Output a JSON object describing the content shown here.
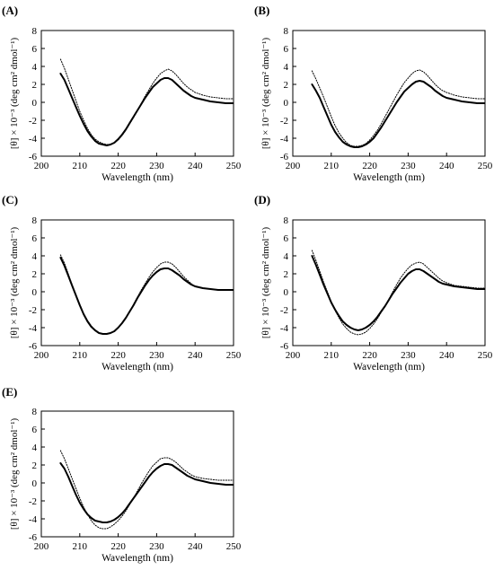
{
  "figure": {
    "panels": [
      {
        "letter": "(A)"
      },
      {
        "letter": "(B)"
      },
      {
        "letter": "(C)"
      },
      {
        "letter": "(D)"
      },
      {
        "letter": "(E)"
      }
    ]
  },
  "chart_data": [
    {
      "type": "line",
      "panel": "(A)",
      "xlabel": "Wavelength (nm)",
      "ylabel": "[θ] × 10⁻³ (deg cm² dmol⁻¹)",
      "xlim": [
        200,
        250
      ],
      "ylim": [
        -6,
        8
      ],
      "xticks": [
        200,
        210,
        220,
        230,
        240,
        250
      ],
      "yticks": [
        -6,
        -4,
        -2,
        0,
        2,
        4,
        6,
        8
      ],
      "grid": false,
      "legend": "none",
      "series": [
        {
          "style": "solid-thick",
          "x": [
            205,
            206,
            207,
            208,
            209,
            210,
            211,
            212,
            213,
            214,
            215,
            216,
            217,
            218,
            219,
            220,
            221,
            222,
            223,
            224,
            225,
            226,
            227,
            228,
            229,
            230,
            231,
            232,
            233,
            234,
            235,
            236,
            237,
            238,
            239,
            240,
            242,
            244,
            246,
            248,
            250
          ],
          "y": [
            3.2,
            2.5,
            1.5,
            0.5,
            -0.5,
            -1.5,
            -2.4,
            -3.2,
            -3.8,
            -4.3,
            -4.6,
            -4.7,
            -4.8,
            -4.7,
            -4.5,
            -4.1,
            -3.6,
            -3.0,
            -2.3,
            -1.6,
            -0.9,
            -0.2,
            0.5,
            1.1,
            1.7,
            2.1,
            2.5,
            2.7,
            2.7,
            2.5,
            2.1,
            1.7,
            1.3,
            1.0,
            0.7,
            0.5,
            0.3,
            0.1,
            0.0,
            -0.1,
            -0.1
          ]
        },
        {
          "style": "dotted",
          "x": [
            205,
            206,
            207,
            208,
            209,
            210,
            211,
            212,
            213,
            214,
            215,
            216,
            217,
            218,
            219,
            220,
            221,
            222,
            223,
            224,
            225,
            226,
            227,
            228,
            229,
            230,
            231,
            232,
            233,
            234,
            235,
            236,
            237,
            238,
            239,
            240,
            242,
            244,
            246,
            248,
            250
          ],
          "y": [
            4.8,
            3.8,
            2.6,
            1.4,
            0.2,
            -1.0,
            -2.0,
            -2.9,
            -3.6,
            -4.1,
            -4.4,
            -4.6,
            -4.7,
            -4.7,
            -4.5,
            -4.2,
            -3.7,
            -3.1,
            -2.4,
            -1.7,
            -0.9,
            -0.1,
            0.7,
            1.4,
            2.1,
            2.7,
            3.2,
            3.5,
            3.7,
            3.5,
            3.1,
            2.6,
            2.1,
            1.7,
            1.4,
            1.1,
            0.8,
            0.6,
            0.5,
            0.4,
            0.4
          ]
        }
      ]
    },
    {
      "type": "line",
      "panel": "(B)",
      "xlabel": "Wavelength (nm)",
      "ylabel": "[θ] × 10⁻³ (deg cm² dmol⁻¹)",
      "xlim": [
        200,
        250
      ],
      "ylim": [
        -6,
        8
      ],
      "xticks": [
        200,
        210,
        220,
        230,
        240,
        250
      ],
      "yticks": [
        -6,
        -4,
        -2,
        0,
        2,
        4,
        6,
        8
      ],
      "grid": false,
      "legend": "none",
      "series": [
        {
          "style": "solid-thick",
          "x": [
            205,
            206,
            207,
            208,
            209,
            210,
            211,
            212,
            213,
            214,
            215,
            216,
            217,
            218,
            219,
            220,
            221,
            222,
            223,
            224,
            225,
            226,
            227,
            228,
            229,
            230,
            231,
            232,
            233,
            234,
            235,
            236,
            237,
            238,
            239,
            240,
            242,
            244,
            246,
            248,
            250
          ],
          "y": [
            2.0,
            1.3,
            0.5,
            -0.5,
            -1.5,
            -2.5,
            -3.3,
            -3.9,
            -4.4,
            -4.7,
            -4.9,
            -5.0,
            -5.0,
            -4.9,
            -4.7,
            -4.4,
            -4.0,
            -3.4,
            -2.8,
            -2.1,
            -1.4,
            -0.7,
            0.0,
            0.6,
            1.2,
            1.6,
            2.0,
            2.3,
            2.4,
            2.3,
            2.0,
            1.7,
            1.3,
            1.0,
            0.7,
            0.5,
            0.3,
            0.1,
            0.0,
            -0.1,
            -0.1
          ]
        },
        {
          "style": "dotted",
          "x": [
            205,
            206,
            207,
            208,
            209,
            210,
            211,
            212,
            213,
            214,
            215,
            216,
            217,
            218,
            219,
            220,
            221,
            222,
            223,
            224,
            225,
            226,
            227,
            228,
            229,
            230,
            231,
            232,
            233,
            234,
            235,
            236,
            237,
            238,
            239,
            240,
            242,
            244,
            246,
            248,
            250
          ],
          "y": [
            3.5,
            2.6,
            1.6,
            0.6,
            -0.5,
            -1.6,
            -2.6,
            -3.4,
            -4.0,
            -4.5,
            -4.8,
            -4.9,
            -4.9,
            -4.8,
            -4.6,
            -4.2,
            -3.7,
            -3.1,
            -2.4,
            -1.6,
            -0.8,
            0.0,
            0.8,
            1.5,
            2.2,
            2.7,
            3.2,
            3.5,
            3.6,
            3.4,
            3.0,
            2.5,
            2.0,
            1.6,
            1.3,
            1.1,
            0.8,
            0.6,
            0.5,
            0.4,
            0.4
          ]
        }
      ]
    },
    {
      "type": "line",
      "panel": "(C)",
      "xlabel": "Wavelength (nm)",
      "ylabel": "[θ] × 10⁻³ (deg cm² dmol⁻¹)",
      "xlim": [
        200,
        250
      ],
      "ylim": [
        -6,
        8
      ],
      "xticks": [
        200,
        210,
        220,
        230,
        240,
        250
      ],
      "yticks": [
        -6,
        -4,
        -2,
        0,
        2,
        4,
        6,
        8
      ],
      "grid": false,
      "legend": "none",
      "series": [
        {
          "style": "solid-thick",
          "x": [
            205,
            206,
            207,
            208,
            209,
            210,
            211,
            212,
            213,
            214,
            215,
            216,
            217,
            218,
            219,
            220,
            221,
            222,
            223,
            224,
            225,
            226,
            227,
            228,
            229,
            230,
            231,
            232,
            233,
            234,
            235,
            236,
            237,
            238,
            239,
            240,
            242,
            244,
            246,
            248,
            250
          ],
          "y": [
            3.8,
            2.9,
            1.8,
            0.7,
            -0.4,
            -1.5,
            -2.5,
            -3.3,
            -3.9,
            -4.3,
            -4.6,
            -4.7,
            -4.7,
            -4.6,
            -4.4,
            -4.0,
            -3.5,
            -2.9,
            -2.2,
            -1.5,
            -0.7,
            0.0,
            0.7,
            1.3,
            1.8,
            2.2,
            2.5,
            2.6,
            2.6,
            2.4,
            2.1,
            1.8,
            1.4,
            1.1,
            0.8,
            0.6,
            0.4,
            0.3,
            0.2,
            0.2,
            0.2
          ]
        },
        {
          "style": "dotted",
          "x": [
            205,
            206,
            207,
            208,
            209,
            210,
            211,
            212,
            213,
            214,
            215,
            216,
            217,
            218,
            219,
            220,
            221,
            222,
            223,
            224,
            225,
            226,
            227,
            228,
            229,
            230,
            231,
            232,
            233,
            234,
            235,
            236,
            237,
            238,
            239,
            240,
            242,
            244,
            246,
            248,
            250
          ],
          "y": [
            4.1,
            3.2,
            2.0,
            0.8,
            -0.3,
            -1.4,
            -2.4,
            -3.2,
            -3.8,
            -4.3,
            -4.6,
            -4.7,
            -4.7,
            -4.6,
            -4.4,
            -4.0,
            -3.5,
            -2.9,
            -2.2,
            -1.4,
            -0.6,
            0.2,
            0.9,
            1.6,
            2.2,
            2.7,
            3.1,
            3.3,
            3.3,
            3.1,
            2.7,
            2.2,
            1.7,
            1.3,
            0.9,
            0.6,
            0.4,
            0.3,
            0.2,
            0.2,
            0.2
          ]
        }
      ]
    },
    {
      "type": "line",
      "panel": "(D)",
      "xlabel": "Wavelength (nm)",
      "ylabel": "[θ] × 10⁻³ (deg cm² dmol⁻¹)",
      "xlim": [
        200,
        250
      ],
      "ylim": [
        -6,
        8
      ],
      "xticks": [
        200,
        210,
        220,
        230,
        240,
        250
      ],
      "yticks": [
        -6,
        -4,
        -2,
        0,
        2,
        4,
        6,
        8
      ],
      "grid": false,
      "legend": "none",
      "series": [
        {
          "style": "solid-thick",
          "x": [
            205,
            206,
            207,
            208,
            209,
            210,
            211,
            212,
            213,
            214,
            215,
            216,
            217,
            218,
            219,
            220,
            221,
            222,
            223,
            224,
            225,
            226,
            227,
            228,
            229,
            230,
            231,
            232,
            233,
            234,
            235,
            236,
            237,
            238,
            239,
            240,
            242,
            244,
            246,
            248,
            250
          ],
          "y": [
            4.0,
            3.0,
            1.9,
            0.8,
            -0.2,
            -1.2,
            -2.0,
            -2.7,
            -3.3,
            -3.7,
            -4.0,
            -4.2,
            -4.3,
            -4.2,
            -4.0,
            -3.7,
            -3.3,
            -2.8,
            -2.2,
            -1.6,
            -0.9,
            -0.2,
            0.4,
            1.0,
            1.5,
            2.0,
            2.3,
            2.5,
            2.5,
            2.3,
            2.0,
            1.7,
            1.4,
            1.1,
            0.9,
            0.8,
            0.6,
            0.5,
            0.4,
            0.3,
            0.3
          ]
        },
        {
          "style": "dotted",
          "x": [
            205,
            206,
            207,
            208,
            209,
            210,
            211,
            212,
            213,
            214,
            215,
            216,
            217,
            218,
            219,
            220,
            221,
            222,
            223,
            224,
            225,
            226,
            227,
            228,
            229,
            230,
            231,
            232,
            233,
            234,
            235,
            236,
            237,
            238,
            239,
            240,
            242,
            244,
            246,
            248,
            250
          ],
          "y": [
            4.6,
            3.5,
            2.3,
            1.1,
            0.0,
            -1.1,
            -2.1,
            -2.9,
            -3.6,
            -4.1,
            -4.5,
            -4.7,
            -4.8,
            -4.7,
            -4.5,
            -4.1,
            -3.6,
            -3.0,
            -2.3,
            -1.6,
            -0.8,
            0.0,
            0.8,
            1.5,
            2.1,
            2.6,
            3.0,
            3.2,
            3.3,
            3.1,
            2.7,
            2.3,
            1.9,
            1.5,
            1.2,
            1.0,
            0.7,
            0.6,
            0.5,
            0.4,
            0.4
          ]
        }
      ]
    },
    {
      "type": "line",
      "panel": "(E)",
      "xlabel": "Wavelength (nm)",
      "ylabel": "[θ] × 10⁻³ (deg cm² dmol⁻¹)",
      "xlim": [
        200,
        250
      ],
      "ylim": [
        -6,
        8
      ],
      "xticks": [
        200,
        210,
        220,
        230,
        240,
        250
      ],
      "yticks": [
        -6,
        -4,
        -2,
        0,
        2,
        4,
        6,
        8
      ],
      "grid": false,
      "legend": "none",
      "series": [
        {
          "style": "solid-thick",
          "x": [
            205,
            206,
            207,
            208,
            209,
            210,
            211,
            212,
            213,
            214,
            215,
            216,
            217,
            218,
            219,
            220,
            221,
            222,
            223,
            224,
            225,
            226,
            227,
            228,
            229,
            230,
            231,
            232,
            233,
            234,
            235,
            236,
            237,
            238,
            239,
            240,
            242,
            244,
            246,
            248,
            250
          ],
          "y": [
            2.2,
            1.6,
            0.7,
            -0.3,
            -1.3,
            -2.2,
            -2.9,
            -3.5,
            -3.9,
            -4.2,
            -4.3,
            -4.4,
            -4.4,
            -4.3,
            -4.1,
            -3.8,
            -3.4,
            -2.9,
            -2.3,
            -1.7,
            -1.1,
            -0.5,
            0.1,
            0.7,
            1.2,
            1.6,
            1.9,
            2.1,
            2.1,
            2.0,
            1.7,
            1.4,
            1.1,
            0.8,
            0.6,
            0.4,
            0.2,
            0.0,
            -0.1,
            -0.2,
            -0.2
          ]
        },
        {
          "style": "dotted",
          "x": [
            205,
            206,
            207,
            208,
            209,
            210,
            211,
            212,
            213,
            214,
            215,
            216,
            217,
            218,
            219,
            220,
            221,
            222,
            223,
            224,
            225,
            226,
            227,
            228,
            229,
            230,
            231,
            232,
            233,
            234,
            235,
            236,
            237,
            238,
            239,
            240,
            242,
            244,
            246,
            248,
            250
          ],
          "y": [
            3.6,
            2.7,
            1.6,
            0.5,
            -0.6,
            -1.7,
            -2.7,
            -3.5,
            -4.2,
            -4.7,
            -5.0,
            -5.1,
            -5.1,
            -4.9,
            -4.6,
            -4.2,
            -3.7,
            -3.1,
            -2.4,
            -1.7,
            -0.9,
            -0.1,
            0.6,
            1.3,
            1.9,
            2.3,
            2.7,
            2.8,
            2.8,
            2.6,
            2.3,
            1.9,
            1.5,
            1.2,
            0.9,
            0.7,
            0.5,
            0.4,
            0.3,
            0.3,
            0.3
          ]
        }
      ]
    }
  ]
}
